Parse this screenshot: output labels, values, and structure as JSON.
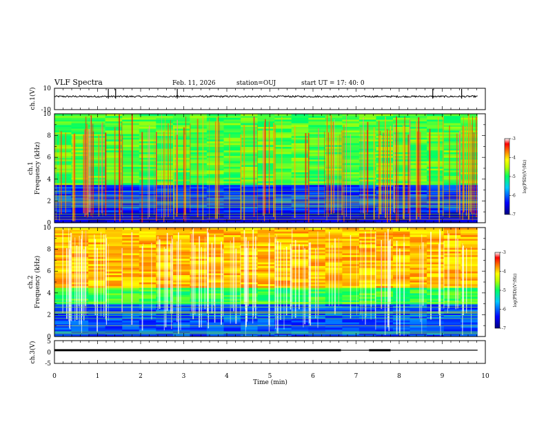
{
  "header": {
    "title": "VLF Spectra",
    "date": "Feb. 11, 2026",
    "station": "station=OUJ",
    "start": "start  UT  =   17: 40: 0"
  },
  "chart_data": [
    {
      "type": "line",
      "panel": "ch1-waveform",
      "ylabel": "ch.1(V)",
      "ylim": [
        -10,
        10
      ],
      "yticks": [
        "10",
        "-10"
      ],
      "xlim": [
        0,
        10
      ],
      "series": [
        {
          "values_description_none": true,
          "values": [
            2.3,
            2.1,
            2.4,
            2.2,
            2.5,
            2.3,
            2.2,
            2.4,
            2.3,
            2.1
          ]
        }
      ],
      "spikes_x": [
        1.25,
        1.42,
        2.85,
        8.78,
        9.45
      ],
      "color": "#000000"
    },
    {
      "type": "heatmap",
      "panel": "ch1-spectrogram",
      "ylabel": "ch.1\nFrequency (kHz)",
      "ylabel_line1": "ch.1",
      "ylabel_line2": "Frequency (kHz)",
      "ylim": [
        0,
        10
      ],
      "yticks": [
        "0",
        "2",
        "4",
        "6",
        "8",
        "10"
      ],
      "xlim": [
        0,
        10
      ],
      "colorbar": {
        "label": "log(PSD)(V²/Hz)",
        "range": [
          -7,
          -3
        ],
        "ticks": [
          "-3",
          "-4",
          "-5",
          "-6",
          "-7"
        ]
      },
      "bands": [
        {
          "from": 0,
          "to": 1.0,
          "level": -6.6
        },
        {
          "from": 1.0,
          "to": 3.5,
          "level": -6.2
        },
        {
          "from": 3.5,
          "to": 10,
          "level": -4.8
        }
      ]
    },
    {
      "type": "heatmap",
      "panel": "ch2-spectrogram",
      "ylabel_line1": "ch.2",
      "ylabel_line2": "Frequency (kHz)",
      "ylim": [
        0,
        10
      ],
      "yticks": [
        "0",
        "2",
        "4",
        "6",
        "8",
        "10"
      ],
      "xlim": [
        0,
        10
      ],
      "colorbar": {
        "label": "log(PSD)(V²/Hz)",
        "range": [
          -7,
          -3
        ],
        "ticks": [
          "-3",
          "-4",
          "-5",
          "-6",
          "-7"
        ]
      },
      "bands": [
        {
          "from": 0,
          "to": 3.0,
          "level": -6.1
        },
        {
          "from": 3.0,
          "to": 4.5,
          "level": -4.9
        },
        {
          "from": 4.5,
          "to": 10,
          "level": -3.9
        }
      ]
    },
    {
      "type": "line",
      "panel": "ch3-waveform",
      "ylabel": "ch.3(V)",
      "ylim": [
        -5,
        5
      ],
      "yticks": [
        "5",
        "0",
        "-5"
      ],
      "xlim": [
        0,
        10
      ],
      "xlabel": "Time (min)",
      "xticks": [
        "0",
        "1",
        "2",
        "3",
        "4",
        "5",
        "6",
        "7",
        "8",
        "9",
        "10"
      ],
      "segments": [
        {
          "x": [
            0,
            6.65
          ],
          "y": 0.8,
          "weight": "thick"
        },
        {
          "x": [
            6.65,
            7.3
          ],
          "y": 0.8,
          "weight": "thin"
        },
        {
          "x": [
            7.3,
            7.8
          ],
          "y": 0.8,
          "weight": "thick"
        },
        {
          "x": [
            7.8,
            9.82
          ],
          "y": 0.8,
          "weight": "thin"
        }
      ],
      "color": "#000000"
    }
  ],
  "colors": {
    "scale": [
      "#00008b",
      "#0000ff",
      "#00bfff",
      "#00ff7f",
      "#adff2f",
      "#ffff00",
      "#ff4500",
      "#ff0000",
      "#ffffff"
    ]
  }
}
